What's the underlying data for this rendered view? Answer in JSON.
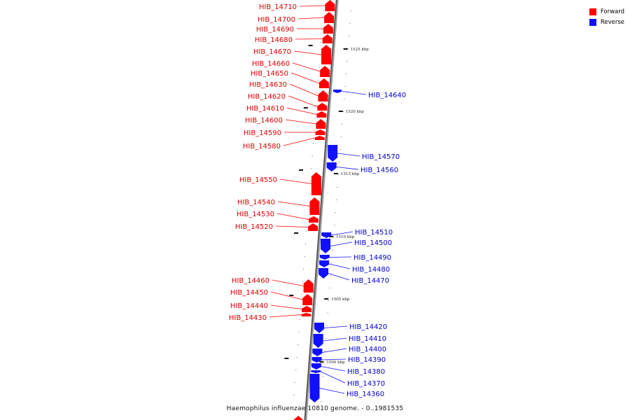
{
  "legend": {
    "forward_label": "Forward",
    "reverse_label": "Reverse",
    "forward_color": "#ff0000",
    "reverse_color": "#1010ff"
  },
  "caption": "Haemophilus influenzae 10810 genome. - 0..1981535",
  "scale_labels": [
    "1525 kbp",
    "1520 kbp",
    "1515 kbp",
    "1510 kbp",
    "1505 kbp",
    "1500 kbp"
  ],
  "forward_genes": [
    "HIB_14710",
    "HIB_14700",
    "HIB_14690",
    "HIB_14680",
    "HIB_14670",
    "HIB_14660",
    "HIB_14650",
    "HIB_14630",
    "HIB_14620",
    "HIB_14610",
    "HIB_14600",
    "HIB_14590",
    "HIB_14580",
    "HIB_14550",
    "HIB_14540",
    "HIB_14530",
    "HIB_14520",
    "HIB_14460",
    "HIB_14450",
    "HIB_14440",
    "HIB_14430"
  ],
  "reverse_genes": [
    "HIB_14640",
    "HIB_14570",
    "HIB_14560",
    "HIB_14510",
    "HIB_14500",
    "HIB_14490",
    "HIB_14480",
    "HIB_14470",
    "HIB_14420",
    "HIB_14410",
    "HIB_14400",
    "HIB_14390",
    "HIB_14380",
    "HIB_14370",
    "HIB_14360"
  ]
}
